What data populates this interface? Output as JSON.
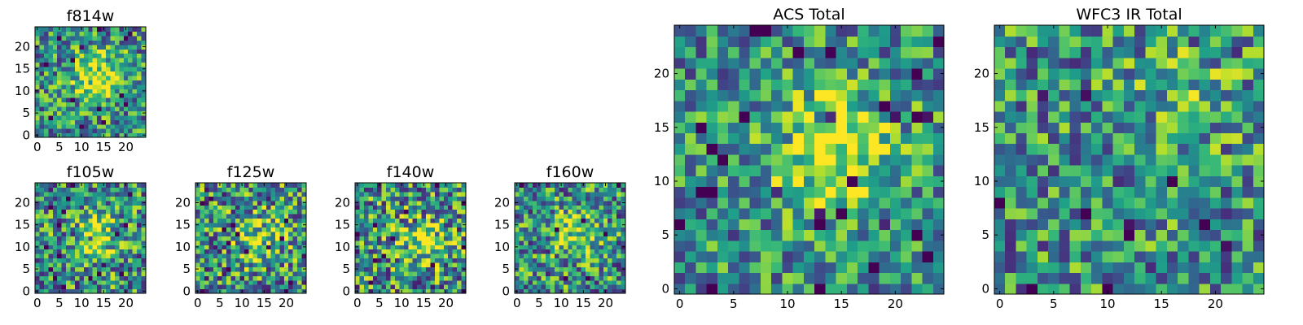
{
  "chart_data": [
    {
      "type": "heatmap",
      "title": "f814w",
      "colormap": "viridis",
      "grid_size": 25,
      "xlim": [
        0,
        24
      ],
      "ylim": [
        0,
        24
      ],
      "xticks": [
        0,
        5,
        10,
        15,
        20
      ],
      "yticks": [
        0,
        5,
        10,
        15,
        20
      ],
      "peak": [
        14,
        13
      ],
      "peak_strength": 0.45,
      "noise": 0.55,
      "seed": 11
    },
    {
      "type": "heatmap",
      "title": "f105w",
      "colormap": "viridis",
      "grid_size": 25,
      "xlim": [
        0,
        24
      ],
      "ylim": [
        0,
        24
      ],
      "xticks": [
        0,
        5,
        10,
        15,
        20
      ],
      "yticks": [
        0,
        5,
        10,
        15,
        20
      ],
      "peak": [
        13,
        12
      ],
      "peak_strength": 0.35,
      "noise": 0.6,
      "seed": 23
    },
    {
      "type": "heatmap",
      "title": "f125w",
      "colormap": "viridis",
      "grid_size": 25,
      "xlim": [
        0,
        24
      ],
      "ylim": [
        0,
        24
      ],
      "xticks": [
        0,
        5,
        10,
        15,
        20
      ],
      "yticks": [
        0,
        5,
        10,
        15,
        20
      ],
      "peak": [
        14,
        12
      ],
      "peak_strength": 0.3,
      "noise": 0.65,
      "seed": 37
    },
    {
      "type": "heatmap",
      "title": "f140w",
      "colormap": "viridis",
      "grid_size": 25,
      "xlim": [
        0,
        24
      ],
      "ylim": [
        0,
        24
      ],
      "xticks": [
        0,
        5,
        10,
        15,
        20
      ],
      "yticks": [
        0,
        5,
        10,
        15,
        20
      ],
      "peak": [
        15,
        11
      ],
      "peak_strength": 0.35,
      "noise": 0.65,
      "seed": 41
    },
    {
      "type": "heatmap",
      "title": "f160w",
      "colormap": "viridis",
      "grid_size": 25,
      "xlim": [
        0,
        24
      ],
      "ylim": [
        0,
        24
      ],
      "xticks": [
        0,
        5,
        10,
        15,
        20
      ],
      "yticks": [
        0,
        5,
        10,
        15,
        20
      ],
      "peak": [
        14,
        13
      ],
      "peak_strength": 0.35,
      "noise": 0.6,
      "seed": 53
    },
    {
      "type": "heatmap",
      "title": "ACS Total",
      "colormap": "viridis",
      "grid_size": 25,
      "xlim": [
        0,
        24
      ],
      "ylim": [
        0,
        24
      ],
      "xticks": [
        0,
        5,
        10,
        15,
        20
      ],
      "yticks": [
        0,
        5,
        10,
        15,
        20
      ],
      "peak": [
        14,
        13
      ],
      "peak_strength": 0.5,
      "noise": 0.5,
      "seed": 67
    },
    {
      "type": "heatmap",
      "title": "WFC3 IR Total",
      "colormap": "viridis",
      "grid_size": 25,
      "xlim": [
        0,
        24
      ],
      "ylim": [
        0,
        24
      ],
      "xticks": [
        0,
        5,
        10,
        15,
        20
      ],
      "yticks": [
        0,
        5,
        10,
        15,
        20
      ],
      "peak": [
        17,
        18
      ],
      "peak_strength": 0.15,
      "noise": 0.55,
      "seed": 79
    }
  ]
}
